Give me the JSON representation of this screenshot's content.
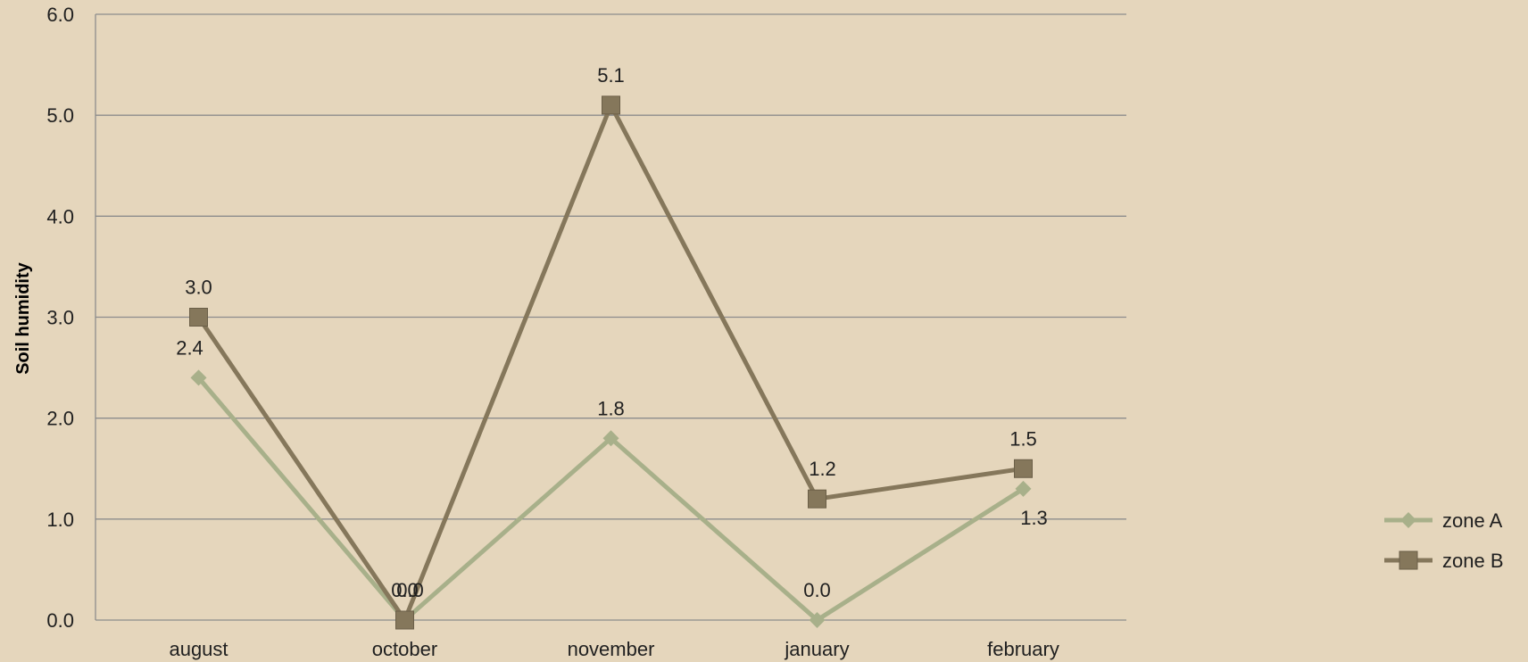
{
  "chart_data": {
    "type": "line",
    "categories": [
      "august",
      "october",
      "november",
      "january",
      "february"
    ],
    "series": [
      {
        "name": "zone A",
        "values": [
          2.4,
          0.0,
          1.8,
          0.0,
          1.3
        ],
        "labels": [
          "2.4",
          "0.0",
          "1.8",
          "0.0",
          "1.3"
        ],
        "marker": "diamond",
        "color": "#a8b08a"
      },
      {
        "name": "zone B",
        "values": [
          3.0,
          0.0,
          5.1,
          1.2,
          1.5
        ],
        "labels": [
          "3.0",
          "0.0",
          "5.1",
          "1.2",
          "1.5"
        ],
        "marker": "square",
        "color": "#85775b"
      }
    ],
    "title": "",
    "xlabel": "",
    "ylabel": "Soil humidity",
    "ylim": [
      0,
      6
    ],
    "yticks": [
      "0.0",
      "1.0",
      "2.0",
      "3.0",
      "4.0",
      "5.0",
      "6.0"
    ],
    "grid": true,
    "legend_position": "right",
    "background_color": "#e5d6bc",
    "gridline_color": "#8c8c8c"
  }
}
